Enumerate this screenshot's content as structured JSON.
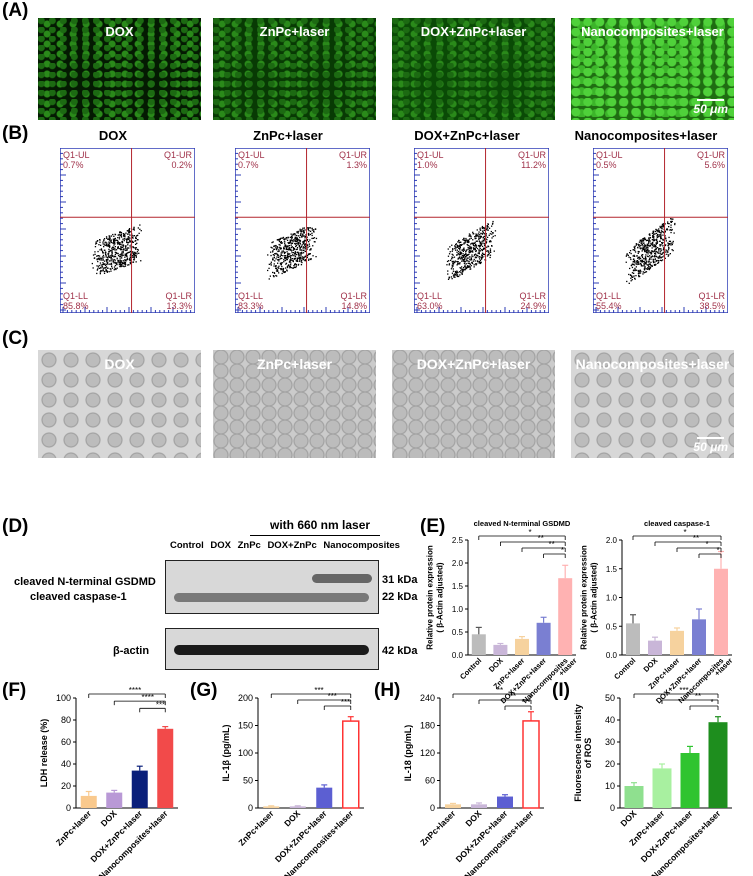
{
  "panels": {
    "A": "(A)",
    "B": "(B)",
    "C": "(C)",
    "D": "(D)",
    "E": "(E)",
    "F": "(F)",
    "G": "(G)",
    "H": "(H)",
    "I": "(I)"
  },
  "groups4": [
    "DOX",
    "ZnPc+laser",
    "DOX+ZnPc+laser",
    "Nanocomposites+laser"
  ],
  "scale_bar": "50 μm",
  "flow": [
    {
      "title": "DOX",
      "ul": "0.7%",
      "ur": "0.2%",
      "ll": "85.8%",
      "lr": "13.3%"
    },
    {
      "title": "ZnPc+laser",
      "ul": "0.7%",
      "ur": "1.3%",
      "ll": "83.3%",
      "lr": "14.8%"
    },
    {
      "title": "DOX+ZnPc+laser",
      "ul": "1.0%",
      "ur": "11.2%",
      "ll": "63.0%",
      "lr": "24.9%"
    },
    {
      "title": "Nanocomposites+laser",
      "ul": "0.5%",
      "ur": "5.6%",
      "ll": "55.4%",
      "lr": "38.5%"
    }
  ],
  "flow_quads": {
    "ul": "Q1-UL",
    "ur": "Q1-UR",
    "ll": "Q1-LL",
    "lr": "Q1-LR"
  },
  "flow_ticks": [
    "10",
    "1",
    "10",
    "2",
    "10",
    "3",
    "10",
    "4",
    "10",
    "5",
    "10",
    "6",
    "10",
    "7.2"
  ],
  "western": {
    "laser_label": "with 660 nm laser",
    "lanes": [
      "Control",
      "DOX",
      "ZnPc",
      "DOX+ZnPc",
      "Nanocomposites"
    ],
    "bands": [
      "cleaved N-terminal GSDMD",
      "cleaved caspase-1",
      "β-actin"
    ],
    "kda": [
      "31 kDa",
      "22 kDa",
      "42 kDa"
    ]
  },
  "chart_data": [
    {
      "panel": "E1",
      "type": "bar",
      "title": "cleaved N-terminal GSDMD",
      "ylabel": "Relative protein expression\n( β-Actin adjusted)",
      "categories": [
        "Control",
        "DOX",
        "ZnPc+laser",
        "DOX+ZnPc+laser",
        "Nanocomposites\n+laser"
      ],
      "values": [
        0.45,
        0.22,
        0.35,
        0.7,
        1.67
      ],
      "errors": [
        0.15,
        0.03,
        0.05,
        0.12,
        0.28
      ],
      "ylim": [
        0,
        2.5
      ],
      "yticks": [
        "0.0",
        "0.5",
        "1.0",
        "1.5",
        "2.0",
        "2.5"
      ],
      "sig": [
        "*",
        "**",
        "**",
        "*"
      ],
      "colors": [
        "#bcbcbc",
        "#c9b6d8",
        "#f6d29e",
        "#7a7fd2",
        "#ffb2b2"
      ]
    },
    {
      "panel": "E2",
      "type": "bar",
      "title": "cleaved caspase-1",
      "ylabel": "Relative protein expression\n( β-Actin adjusted)",
      "categories": [
        "Control",
        "DOX",
        "ZnPc+laser",
        "DOX+ZnPc+laser",
        "Nanocomposites\n+laser"
      ],
      "values": [
        0.55,
        0.25,
        0.42,
        0.62,
        1.5
      ],
      "errors": [
        0.15,
        0.06,
        0.05,
        0.18,
        0.3
      ],
      "ylim": [
        0,
        2.0
      ],
      "yticks": [
        "0.0",
        "0.5",
        "1.0",
        "1.5",
        "2.0"
      ],
      "sig": [
        "*",
        "**",
        "*",
        "*"
      ],
      "colors": [
        "#bcbcbc",
        "#c9b6d8",
        "#f6d29e",
        "#7a7fd2",
        "#ffb2b2"
      ]
    },
    {
      "panel": "F",
      "type": "bar",
      "ylabel": "LDH release (%)",
      "categories": [
        "ZnPc+laser",
        "DOX",
        "DOX+ZnPc+laser",
        "Nanocomposites+laser"
      ],
      "values": [
        11,
        14,
        34,
        72
      ],
      "errors": [
        4,
        2,
        4,
        2
      ],
      "ylim": [
        0,
        100
      ],
      "yticks": [
        "0",
        "20",
        "40",
        "60",
        "80",
        "100"
      ],
      "sig": [
        "****",
        "****",
        "***"
      ],
      "colors": [
        "#f9c98d",
        "#b999d6",
        "#0a1f7a",
        "#f24a4a"
      ]
    },
    {
      "panel": "G",
      "type": "bar",
      "ylabel": "IL-1β (pg/mL)",
      "categories": [
        "ZnPc+laser",
        "DOX",
        "DOX+ZnPc+laser",
        "Nanocomposites+laser"
      ],
      "values": [
        3,
        3,
        37,
        158
      ],
      "errors": [
        1,
        1,
        5,
        8
      ],
      "ylim": [
        0,
        200
      ],
      "yticks": [
        "0",
        "50",
        "100",
        "150",
        "200"
      ],
      "sig": [
        "***",
        "***",
        "***"
      ],
      "colors": [
        "#f6d29e",
        "#c9b6d8",
        "#5c5fd2",
        "#ff3333"
      ],
      "hollow": true
    },
    {
      "panel": "H",
      "type": "bar",
      "ylabel": "IL-18 (pg/mL)",
      "categories": [
        "ZnPc+laser",
        "DOX",
        "DOX+ZnPc+laser",
        "Nanocomposites+laser"
      ],
      "values": [
        8,
        8,
        25,
        190
      ],
      "errors": [
        2,
        3,
        4,
        20
      ],
      "ylim": [
        0,
        240
      ],
      "yticks": [
        "0",
        "60",
        "120",
        "180",
        "240"
      ],
      "sig": [
        "**",
        "**",
        "***"
      ],
      "colors": [
        "#f6d29e",
        "#c9b6d8",
        "#5c5fd2",
        "#ff3333"
      ],
      "hollow": true
    },
    {
      "panel": "I",
      "type": "bar",
      "ylabel": "Fluorescence intensity\nof ROS",
      "categories": [
        "DOX",
        "ZnPc+laser",
        "DOX+ZnPc+laser",
        "Nanocomposites+laser"
      ],
      "values": [
        10,
        18,
        25,
        39
      ],
      "errors": [
        1.5,
        2,
        3,
        2.5
      ],
      "ylim": [
        0,
        50
      ],
      "yticks": [
        "0",
        "10",
        "20",
        "30",
        "40",
        "50"
      ],
      "sig": [
        "***",
        "**",
        "*"
      ],
      "colors": [
        "#8fe08f",
        "#a8f0a0",
        "#2fc42f",
        "#1e8e1e"
      ]
    }
  ]
}
